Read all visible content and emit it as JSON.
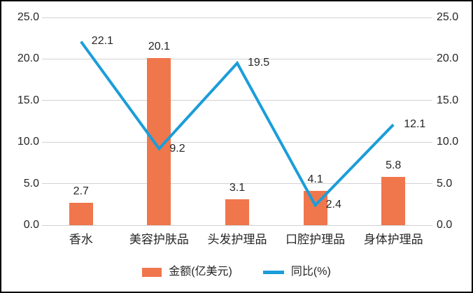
{
  "chart_data": {
    "type": "bar",
    "subtype": "bar-line-combo",
    "title": "",
    "categories": [
      "香水",
      "美容护肤品",
      "头发护理品",
      "口腔护理品",
      "身体护理品"
    ],
    "series": [
      {
        "name": "金额(亿美元)",
        "type": "bar",
        "values": [
          2.7,
          20.1,
          3.1,
          4.1,
          5.8
        ],
        "labels": [
          "2.7",
          "20.1",
          "3.1",
          "4.1",
          "5.8"
        ],
        "color": "#f0764c"
      },
      {
        "name": "同比(%)",
        "type": "line",
        "values": [
          22.1,
          9.2,
          19.5,
          2.4,
          12.1
        ],
        "labels": [
          "22.1",
          "9.2",
          "19.5",
          "2.4",
          "12.1"
        ],
        "color": "#1b9dd9"
      }
    ],
    "y_axis_left": {
      "min": 0,
      "max": 25,
      "step": 5,
      "ticks": [
        "0.0",
        "5.0",
        "10.0",
        "15.0",
        "20.0",
        "25.0"
      ]
    },
    "y_axis_right": {
      "min": 0,
      "max": 25,
      "step": 5,
      "ticks": [
        "0.0",
        "5.0",
        "10.0",
        "15.0",
        "20.0",
        "25.0"
      ]
    },
    "grid": true,
    "legend_position": "bottom"
  },
  "colors": {
    "bar": "#f0764c",
    "line": "#1b9dd9",
    "gridline": "#d2d2d2",
    "text": "#262626",
    "border": "#000000",
    "background": "#ffffff"
  }
}
